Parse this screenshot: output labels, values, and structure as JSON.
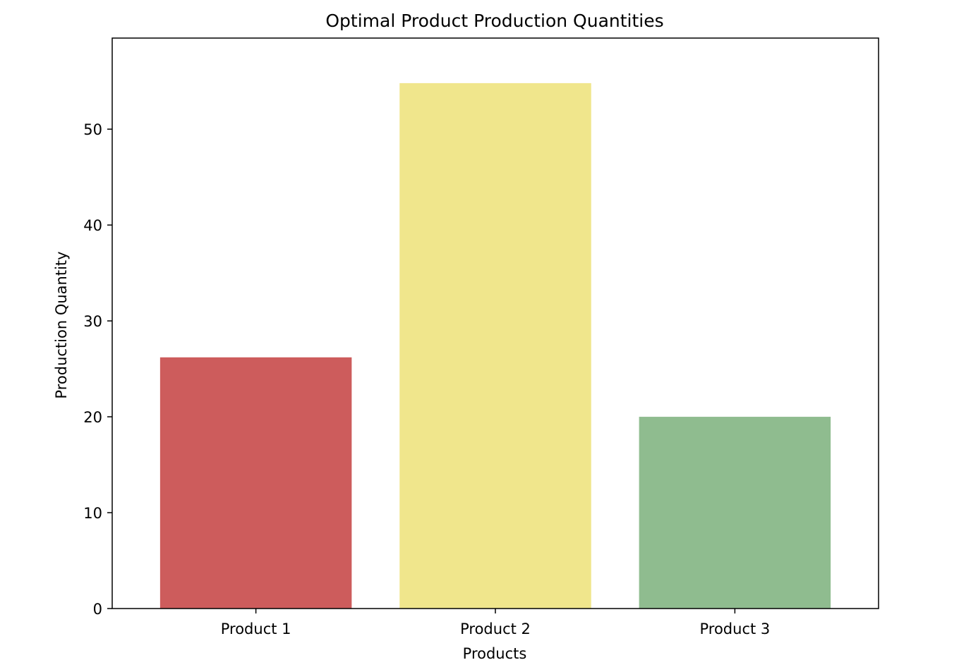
{
  "chart_data": {
    "type": "bar",
    "title": "Optimal Product Production Quantities",
    "xlabel": "Products",
    "ylabel": "Production Quantity",
    "categories": [
      "Product 1",
      "Product 2",
      "Product 3"
    ],
    "values": [
      26.2,
      54.8,
      20.0
    ],
    "colors": [
      "#cd5c5c",
      "#f0e68c",
      "#8fbc8f"
    ],
    "ylim": [
      0,
      59.5
    ],
    "yticks": [
      0,
      10,
      20,
      30,
      40,
      50
    ],
    "ytick_labels": [
      "0",
      "10",
      "20",
      "30",
      "40",
      "50"
    ],
    "grid": false,
    "legend": "none"
  }
}
